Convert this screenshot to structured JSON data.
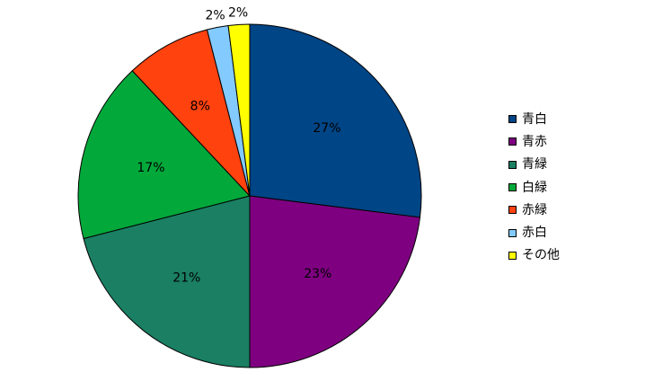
{
  "chart_data": {
    "type": "pie",
    "title": "",
    "slices": [
      {
        "label": "青白",
        "value": 27,
        "value_label": "27%",
        "color": "#004586"
      },
      {
        "label": "青赤",
        "value": 23,
        "value_label": "23%",
        "color": "#7E0080"
      },
      {
        "label": "青緑",
        "value": 21,
        "value_label": "21%",
        "color": "#1A7F63"
      },
      {
        "label": "白緑",
        "value": 17,
        "value_label": "17%",
        "color": "#02A93A"
      },
      {
        "label": "赤緑",
        "value": 8,
        "value_label": "8%",
        "color": "#FF420E"
      },
      {
        "label": "赤白",
        "value": 2,
        "value_label": "2%",
        "color": "#83CAFF"
      },
      {
        "label": "その他",
        "value": 2,
        "value_label": "2%",
        "color": "#FFFF00"
      }
    ],
    "legend_position": "right"
  }
}
